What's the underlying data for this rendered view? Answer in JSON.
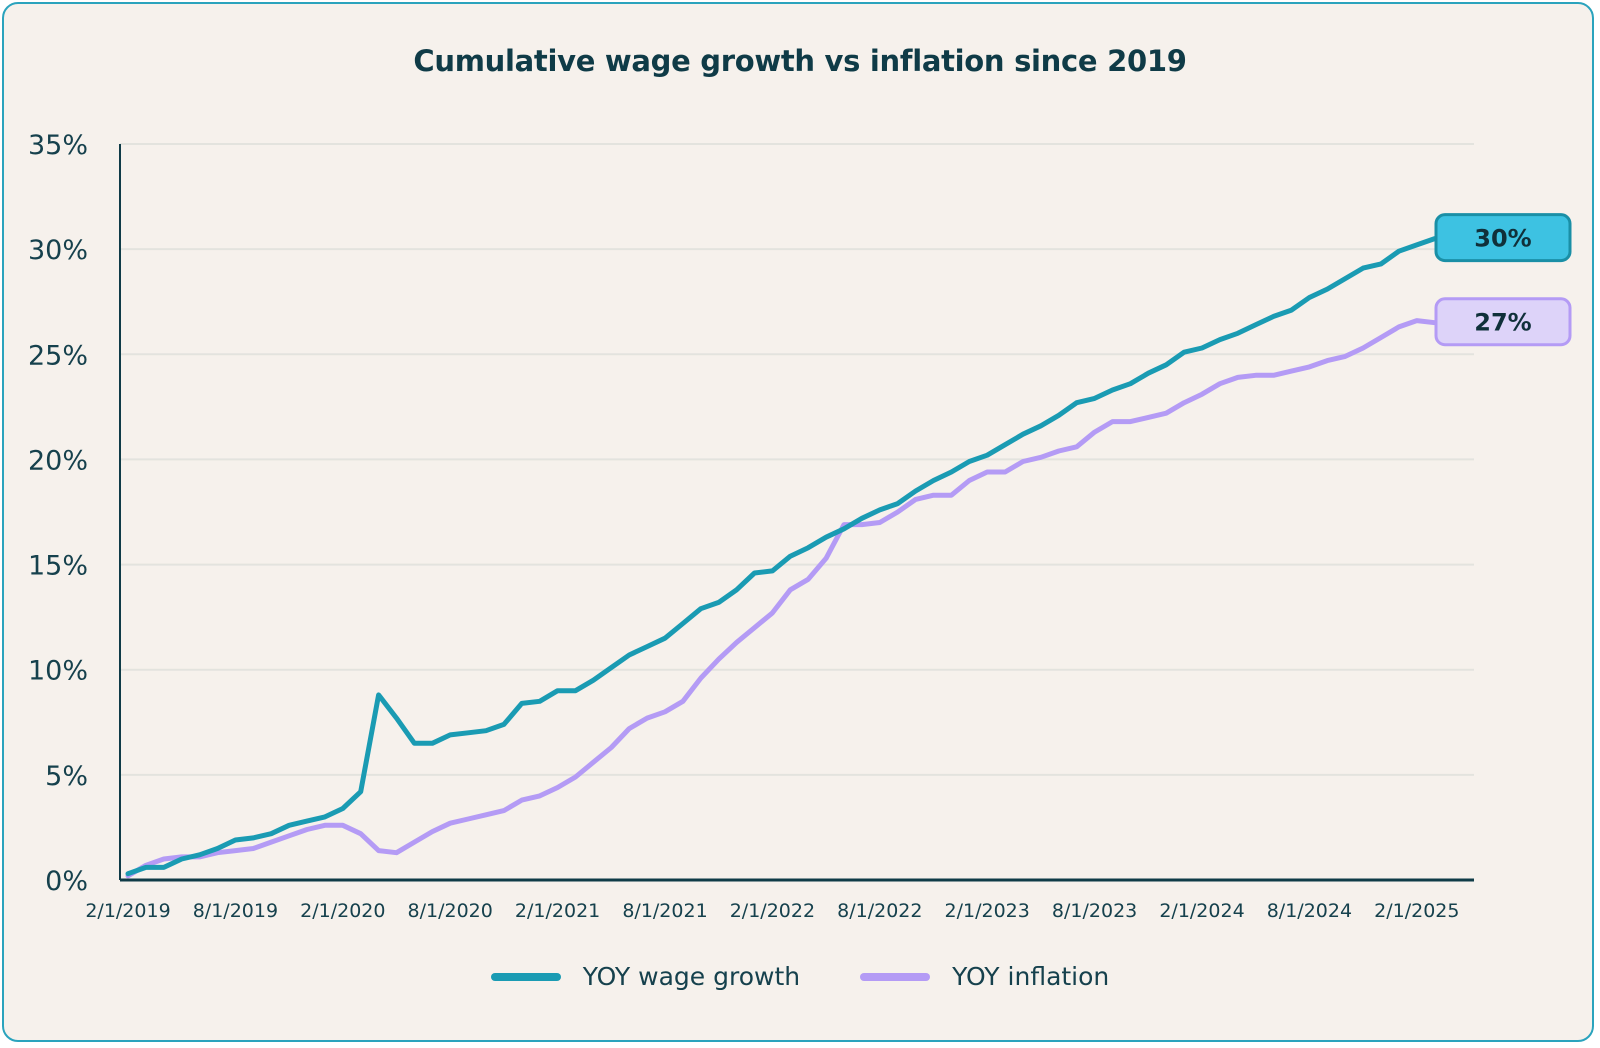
{
  "colors": {
    "background": "#f6f1ec",
    "border": "#2aa3bd",
    "grid": "#e3e3de",
    "axis": "#0f3b47",
    "wage": "#1a9bb3",
    "inflation": "#b49bf5",
    "wage_badge_fill": "#3dc2e2",
    "wage_badge_stroke": "#1a8fa6",
    "inflation_badge_fill": "#ddd3f9",
    "inflation_badge_stroke": "#b49bf5"
  },
  "chart_data": {
    "type": "line",
    "title": "Cumulative wage growth vs inflation since 2019",
    "xlabel": "",
    "ylabel": "",
    "ylim": [
      0,
      35
    ],
    "y_ticks": [
      0,
      5,
      10,
      15,
      20,
      25,
      30,
      35
    ],
    "y_tick_labels": [
      "0%",
      "5%",
      "10%",
      "15%",
      "20%",
      "25%",
      "30%",
      "35%"
    ],
    "x_range_months": [
      0,
      72
    ],
    "x_ticks": [
      0,
      6,
      12,
      18,
      24,
      30,
      36,
      42,
      48,
      54,
      60,
      66,
      72
    ],
    "x_tick_labels": [
      "2/1/2019",
      "8/1/2019",
      "2/1/2020",
      "8/1/2020",
      "2/1/2021",
      "8/1/2021",
      "2/1/2022",
      "8/1/2022",
      "2/1/2023",
      "8/1/2023",
      "2/1/2024",
      "8/1/2024",
      "2/1/2025"
    ],
    "x_unit": "months since 2/1/2019",
    "grid": true,
    "legend_position": "bottom",
    "series": [
      {
        "name": "YOY wage growth",
        "color": "#1a9bb3",
        "end_label": "30%",
        "x": [
          0,
          1,
          2,
          3,
          4,
          5,
          6,
          7,
          8,
          9,
          10,
          11,
          12,
          13,
          14,
          15,
          16,
          17,
          18,
          19,
          20,
          21,
          22,
          23,
          24,
          25,
          26,
          27,
          28,
          29,
          30,
          31,
          32,
          33,
          34,
          35,
          36,
          37,
          38,
          39,
          40,
          41,
          42,
          43,
          44,
          45,
          46,
          47,
          48,
          49,
          50,
          51,
          52,
          53,
          54,
          55,
          56,
          57,
          58,
          59,
          60,
          61,
          62,
          63,
          64,
          65,
          66,
          67,
          68,
          69,
          70,
          71,
          72,
          73
        ],
        "values": [
          0.3,
          0.6,
          0.6,
          1.0,
          1.2,
          1.5,
          1.9,
          2.0,
          2.2,
          2.6,
          2.8,
          3.0,
          3.4,
          4.2,
          8.8,
          7.7,
          6.5,
          6.5,
          6.9,
          7.0,
          7.1,
          7.4,
          8.4,
          8.5,
          9.0,
          9.0,
          9.5,
          10.1,
          10.7,
          11.1,
          11.5,
          12.2,
          12.9,
          13.2,
          13.8,
          14.6,
          14.7,
          15.4,
          15.8,
          16.3,
          16.7,
          17.2,
          17.6,
          17.9,
          18.5,
          19.0,
          19.4,
          19.9,
          20.2,
          20.7,
          21.2,
          21.6,
          22.1,
          22.7,
          22.9,
          23.3,
          23.6,
          24.1,
          24.5,
          25.1,
          25.3,
          25.7,
          26.0,
          26.4,
          26.8,
          27.1,
          27.7,
          28.1,
          28.6,
          29.1,
          29.3,
          29.9,
          30.2,
          30.5
        ]
      },
      {
        "name": "YOY inflation",
        "color": "#b49bf5",
        "end_label": "27%",
        "x": [
          0,
          1,
          2,
          3,
          4,
          5,
          6,
          7,
          8,
          9,
          10,
          11,
          12,
          13,
          14,
          15,
          16,
          17,
          18,
          19,
          20,
          21,
          22,
          23,
          24,
          25,
          26,
          27,
          28,
          29,
          30,
          31,
          32,
          33,
          34,
          35,
          36,
          37,
          38,
          39,
          40,
          41,
          42,
          43,
          44,
          45,
          46,
          47,
          48,
          49,
          50,
          51,
          52,
          53,
          54,
          55,
          56,
          57,
          58,
          59,
          60,
          61,
          62,
          63,
          64,
          65,
          66,
          67,
          68,
          69,
          70,
          71,
          72,
          73
        ],
        "values": [
          0.2,
          0.7,
          1.0,
          1.1,
          1.1,
          1.3,
          1.4,
          1.5,
          1.8,
          2.1,
          2.4,
          2.6,
          2.6,
          2.2,
          1.4,
          1.3,
          1.8,
          2.3,
          2.7,
          2.9,
          3.1,
          3.3,
          3.8,
          4.0,
          4.4,
          4.9,
          5.6,
          6.3,
          7.2,
          7.7,
          8.0,
          8.5,
          9.6,
          10.5,
          11.3,
          12.0,
          12.7,
          13.8,
          14.3,
          15.3,
          16.9,
          16.9,
          17.0,
          17.5,
          18.1,
          18.3,
          18.3,
          19.0,
          19.4,
          19.4,
          19.9,
          20.1,
          20.4,
          20.6,
          21.3,
          21.8,
          21.8,
          22.0,
          22.2,
          22.7,
          23.1,
          23.6,
          23.9,
          24.0,
          24.0,
          24.2,
          24.4,
          24.7,
          24.9,
          25.3,
          25.8,
          26.3,
          26.6,
          26.5
        ]
      }
    ]
  }
}
